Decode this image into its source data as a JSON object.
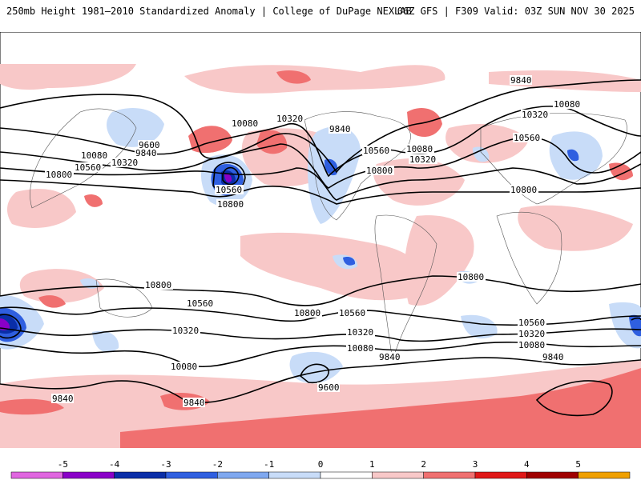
{
  "header": {
    "title": "250mb Height 1981–2010 Standardized Anomaly | College of DuPage NEXLAB",
    "run_info": "06Z GFS | F309 Valid: 03Z SUN NOV 30 2025"
  },
  "contour_labels": {
    "l9600": "9600",
    "l9840": "9840",
    "l10080": "10080",
    "l10320": "10320",
    "l10560": "10560",
    "l10800": "10800"
  },
  "legend": {
    "ticks": [
      "-5",
      "-4",
      "-3",
      "-2",
      "-1",
      "0",
      "1",
      "2",
      "3",
      "4",
      "5"
    ],
    "colors": [
      "#e066e0",
      "#8a00c8",
      "#0a2ea8",
      "#2f5fe0",
      "#7fa8f0",
      "#c8dcf8",
      "#ffffff",
      "#f8c8c8",
      "#f07070",
      "#e01818",
      "#a00000",
      "#f0a000"
    ]
  }
}
